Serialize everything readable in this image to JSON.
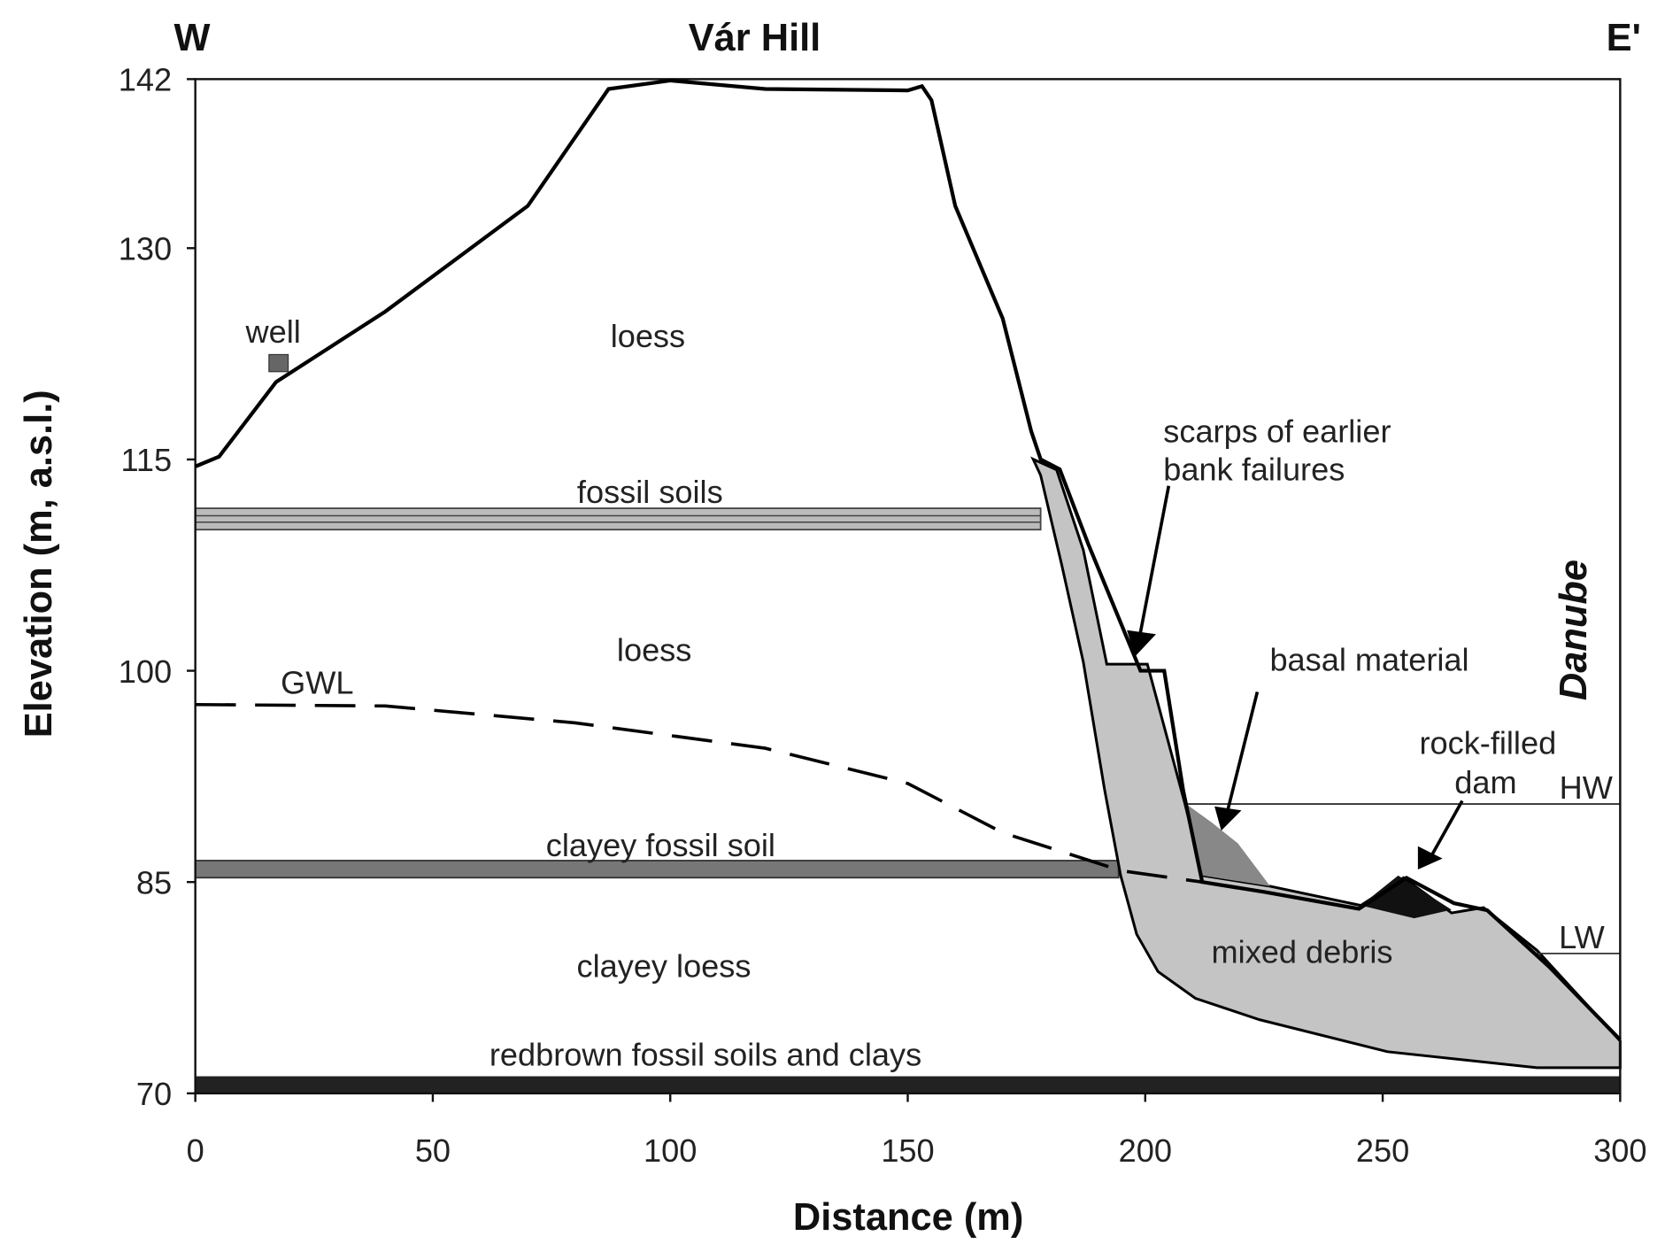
{
  "chart_data": {
    "type": "line",
    "title": "Vár Hill",
    "x_label": "Distance (m)",
    "y_label": "Elevation (m, a.s.l.)",
    "xlim": [
      0,
      300
    ],
    "xticks": [
      0,
      50,
      100,
      150,
      200,
      250,
      300
    ],
    "ylim": [
      70,
      142
    ],
    "yticks": [
      70,
      85,
      100,
      115,
      130,
      142
    ],
    "series": [
      {
        "color": "#000000",
        "dash": false,
        "x": [
          0,
          5,
          17,
          40,
          70,
          87,
          100,
          120,
          150,
          153,
          155,
          160,
          170,
          176,
          178,
          182,
          188,
          199,
          204,
          208,
          212,
          225,
          245,
          255,
          265,
          272,
          285,
          300
        ],
        "values": [
          114.5,
          115.2,
          120.5,
          125.5,
          133,
          141.3,
          141.9,
          141.3,
          141.2,
          141.5,
          140.5,
          133,
          125,
          117,
          115,
          114.3,
          109,
          100,
          100,
          91.5,
          85,
          84.3,
          83.1,
          85.3,
          83.5,
          83,
          79,
          73.8
        ]
      },
      {
        "name": "GWL",
        "color": "#000000",
        "dash": true,
        "x": [
          0,
          40,
          80,
          120,
          150,
          170,
          195,
          212
        ],
        "values": [
          97.6,
          97.5,
          96.3,
          94.5,
          92,
          88.5,
          85.8,
          85
        ]
      }
    ],
    "annotations": [
      "W",
      "E'",
      "loess",
      "well",
      "fossil soils",
      "loess",
      "clayey fossil soil",
      "clayey loess",
      "redbrown fossil soils and clays",
      "scarps of earlier",
      "bank failures",
      "basal material",
      "rock-filled",
      "dam",
      "HW",
      "LW",
      "mixed debris",
      "Danube"
    ]
  }
}
